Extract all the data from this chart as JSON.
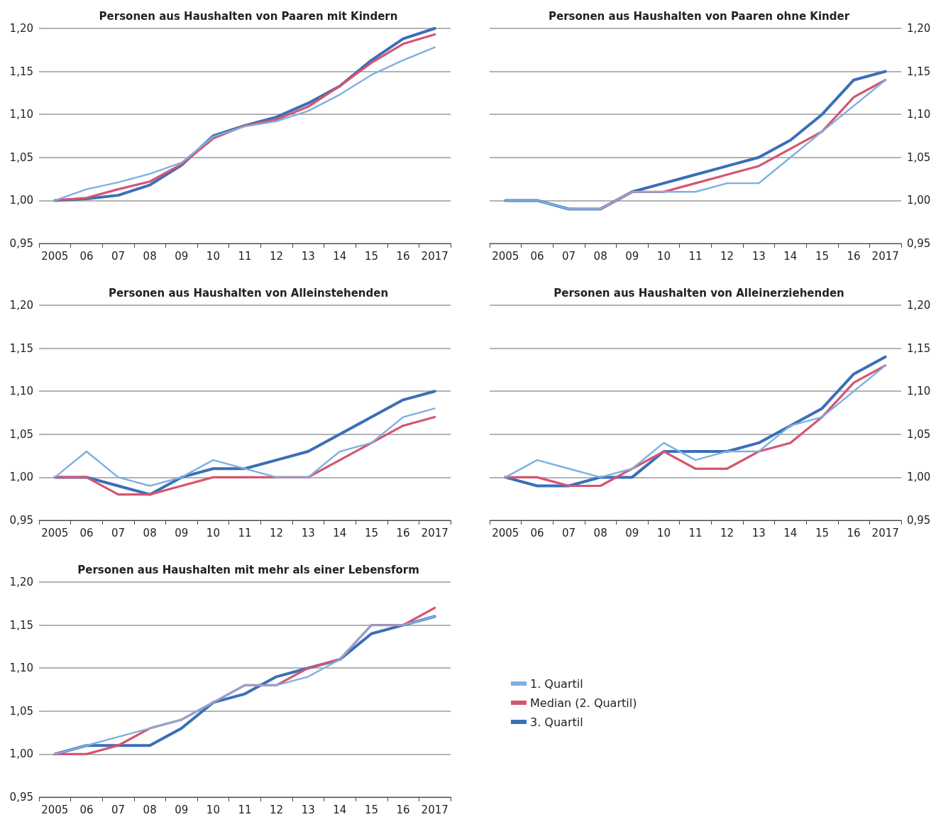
{
  "chart_data": [
    {
      "type": "line",
      "title": "Personen aus Haushalten von Paaren mit Kindern",
      "categories": [
        "2005",
        "06",
        "07",
        "08",
        "09",
        "10",
        "11",
        "12",
        "13",
        "14",
        "15",
        "16",
        "2017"
      ],
      "series": [
        {
          "color": "#7eb0e0",
          "values": [
            1.0,
            1.013,
            1.021,
            1.031,
            1.044,
            1.074,
            1.086,
            1.092,
            1.104,
            1.123,
            1.146,
            1.163,
            1.178
          ]
        },
        {
          "color": "#d6546f",
          "values": [
            1.0,
            1.003,
            1.013,
            1.022,
            1.042,
            1.072,
            1.087,
            1.094,
            1.109,
            1.133,
            1.16,
            1.182,
            1.193
          ]
        },
        {
          "color": "#3a6fb8",
          "values": [
            1.0,
            1.002,
            1.006,
            1.018,
            1.041,
            1.075,
            1.087,
            1.097,
            1.113,
            1.133,
            1.163,
            1.188,
            1.2
          ]
        }
      ],
      "ylim": [
        0.95,
        1.2
      ],
      "yticks": [
        {
          "value": 0.95,
          "label": "0,95"
        },
        {
          "value": 1.0,
          "label": "1,00"
        },
        {
          "value": 1.05,
          "label": "1,05"
        },
        {
          "value": 1.1,
          "label": "1,10"
        },
        {
          "value": 1.15,
          "label": "1,15"
        },
        {
          "value": 1.2,
          "label": "1,20"
        }
      ],
      "grid": "y",
      "legend": false,
      "marker": "none",
      "line_style": "solid"
    },
    {
      "type": "line",
      "title": "Personen aus Haushalten von Paaren ohne Kinder",
      "categories": [
        "2005",
        "06",
        "07",
        "08",
        "09",
        "10",
        "11",
        "12",
        "13",
        "14",
        "15",
        "16",
        "2017"
      ],
      "series": [
        {
          "color": "#7eb0e0",
          "values": [
            1.0,
            1.0,
            0.99,
            0.99,
            1.01,
            1.01,
            1.01,
            1.02,
            1.02,
            1.05,
            1.08,
            1.11,
            1.14
          ]
        },
        {
          "color": "#d6546f",
          "values": [
            null,
            null,
            0.99,
            0.99,
            1.01,
            1.01,
            1.02,
            1.03,
            1.04,
            1.06,
            1.08,
            1.12,
            1.14
          ]
        },
        {
          "color": "#3a6fb8",
          "values": [
            1.0,
            1.0,
            0.99,
            0.99,
            1.01,
            1.02,
            1.03,
            1.04,
            1.05,
            1.07,
            1.1,
            1.14,
            1.15
          ]
        }
      ],
      "ylim": [
        0.95,
        1.2
      ],
      "yticks": [
        {
          "value": 0.95,
          "label": "0,95"
        },
        {
          "value": 1.0,
          "label": "1,00"
        },
        {
          "value": 1.05,
          "label": "1,05"
        },
        {
          "value": 1.1,
          "label": "1,10"
        },
        {
          "value": 1.15,
          "label": "1,15"
        },
        {
          "value": 1.2,
          "label": "1,20"
        }
      ],
      "grid": "y",
      "legend": false,
      "marker": "none",
      "line_style": "solid"
    },
    {
      "type": "line",
      "title": "Personen aus Haushalten von Alleinstehenden",
      "categories": [
        "2005",
        "06",
        "07",
        "08",
        "09",
        "10",
        "11",
        "12",
        "13",
        "14",
        "15",
        "16",
        "2017"
      ],
      "series": [
        {
          "color": "#7eb0e0",
          "values": [
            1.0,
            1.03,
            1.0,
            0.99,
            1.0,
            1.02,
            1.01,
            1.0,
            1.0,
            1.03,
            1.04,
            1.07,
            1.08
          ]
        },
        {
          "color": "#d6546f",
          "values": [
            1.0,
            1.0,
            0.98,
            0.98,
            0.99,
            1.0,
            1.0,
            1.0,
            1.0,
            1.02,
            1.04,
            1.06,
            1.07
          ]
        },
        {
          "color": "#3a6fb8",
          "values": [
            1.0,
            1.0,
            0.99,
            0.98,
            1.0,
            1.01,
            1.01,
            1.02,
            1.03,
            1.05,
            1.07,
            1.09,
            1.1
          ]
        }
      ],
      "ylim": [
        0.95,
        1.2
      ],
      "yticks": [
        {
          "value": 0.95,
          "label": "0,95"
        },
        {
          "value": 1.0,
          "label": "1,00"
        },
        {
          "value": 1.05,
          "label": "1,05"
        },
        {
          "value": 1.1,
          "label": "1,10"
        },
        {
          "value": 1.15,
          "label": "1,15"
        },
        {
          "value": 1.2,
          "label": "1,20"
        }
      ],
      "grid": "y",
      "legend": false,
      "marker": "none",
      "line_style": "solid"
    },
    {
      "type": "line",
      "title": "Personen aus Haushalten von Alleinerziehenden",
      "categories": [
        "2005",
        "06",
        "07",
        "08",
        "09",
        "10",
        "11",
        "12",
        "13",
        "14",
        "15",
        "16",
        "2017"
      ],
      "series": [
        {
          "color": "#7eb0e0",
          "values": [
            1.0,
            1.02,
            1.01,
            1.0,
            1.01,
            1.04,
            1.02,
            1.03,
            1.03,
            1.06,
            1.07,
            1.1,
            1.13
          ]
        },
        {
          "color": "#d6546f",
          "values": [
            1.0,
            1.0,
            0.99,
            0.99,
            1.01,
            1.03,
            1.01,
            1.01,
            1.03,
            1.04,
            1.07,
            1.11,
            1.13
          ]
        },
        {
          "color": "#3a6fb8",
          "values": [
            1.0,
            0.99,
            0.99,
            1.0,
            1.0,
            1.03,
            1.03,
            1.03,
            1.04,
            1.06,
            1.08,
            1.12,
            1.14
          ]
        }
      ],
      "ylim": [
        0.95,
        1.2
      ],
      "yticks": [
        {
          "value": 0.95,
          "label": "0,95"
        },
        {
          "value": 1.0,
          "label": "1,00"
        },
        {
          "value": 1.05,
          "label": "1,05"
        },
        {
          "value": 1.1,
          "label": "1,10"
        },
        {
          "value": 1.15,
          "label": "1,15"
        },
        {
          "value": 1.2,
          "label": "1,20"
        }
      ],
      "grid": "y",
      "legend": false,
      "marker": "none",
      "line_style": "solid"
    },
    {
      "type": "line",
      "title": "Personen aus Haushalten mit mehr als einer Lebensform",
      "categories": [
        "2005",
        "06",
        "07",
        "08",
        "09",
        "10",
        "11",
        "12",
        "13",
        "14",
        "15",
        "16",
        "2017"
      ],
      "series": [
        {
          "name": "1. Quartil",
          "color": "#7eb0e0",
          "values": [
            1.0,
            1.01,
            1.02,
            1.03,
            1.04,
            1.06,
            1.08,
            1.08,
            1.09,
            1.11,
            1.15,
            1.15,
            1.16
          ]
        },
        {
          "name": "Median (2. Quartil)",
          "color": "#d6546f",
          "values": [
            1.0,
            1.0,
            1.01,
            1.03,
            1.04,
            1.06,
            1.08,
            1.08,
            1.1,
            1.11,
            1.15,
            1.15,
            1.17
          ]
        },
        {
          "name": "3. Quartil",
          "color": "#3a6fb8",
          "values": [
            1.0,
            1.01,
            1.01,
            1.01,
            1.03,
            1.06,
            1.07,
            1.09,
            1.1,
            1.11,
            1.14,
            1.15,
            1.16
          ]
        }
      ],
      "ylim": [
        0.95,
        1.2
      ],
      "yticks": [
        {
          "value": 0.95,
          "label": "0,95"
        },
        {
          "value": 1.0,
          "label": "1,00"
        },
        {
          "value": 1.05,
          "label": "1,05"
        },
        {
          "value": 1.1,
          "label": "1,10"
        },
        {
          "value": 1.15,
          "label": "1,15"
        },
        {
          "value": 1.2,
          "label": "1,20"
        }
      ],
      "grid": "y",
      "legend": "right",
      "marker": "none",
      "line_style": "solid"
    }
  ]
}
